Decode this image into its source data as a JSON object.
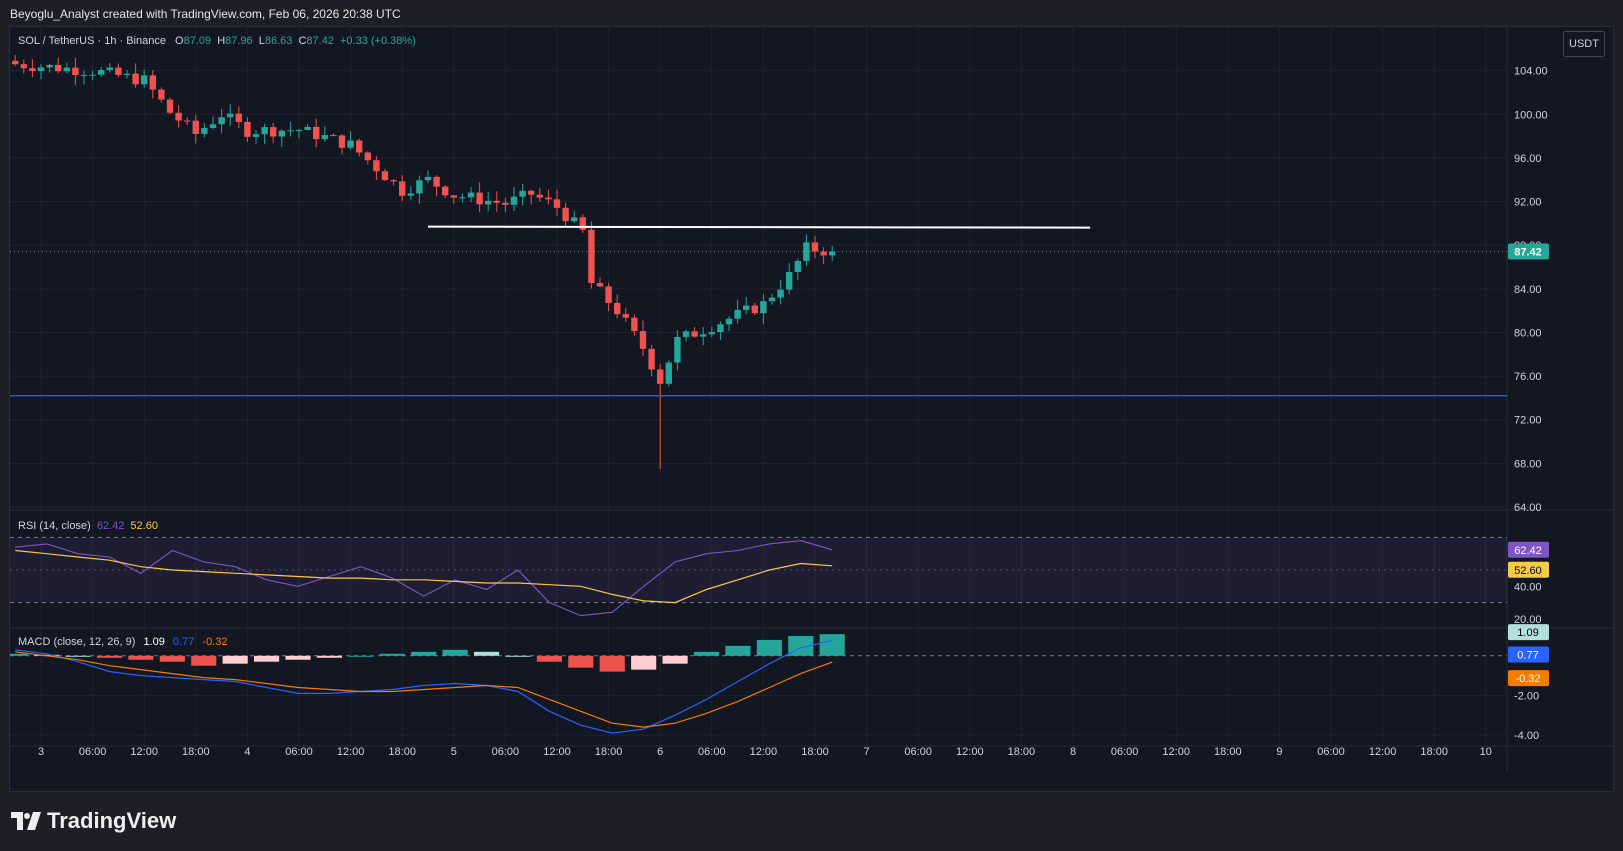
{
  "header": {
    "attribution": "Beyoglu_Analyst created with TradingView.com, Feb 06, 2026 20:38 UTC"
  },
  "brand": {
    "name": "TradingView",
    "logo_icon": "tradingview-logo-icon"
  },
  "symbol": {
    "name": "SOL / TetherUS · 1h · Binance",
    "open_label": "O",
    "open": "87.09",
    "high_label": "H",
    "high": "87.96",
    "low_label": "L",
    "low": "86.63",
    "close_label": "C",
    "close": "87.42",
    "change": "+0.33 (+0.38%)"
  },
  "currency_button": "USDT",
  "colors": {
    "up": "#26a69a",
    "down": "#ef5350",
    "rsi": "#7e57c2",
    "rsi_ma": "#f7c948",
    "macd": "#2962ff",
    "signal": "#f57c00",
    "support": "#2962ff",
    "resistance": "#ffffff"
  },
  "rsi_legend": {
    "name": "RSI (14, close)",
    "value": "62.42",
    "ma": "52.60"
  },
  "macd_legend": {
    "name": "MACD (close, 12, 26, 9)",
    "hist": "1.09",
    "macd": "0.77",
    "signal": "-0.32"
  },
  "chart_data": [
    {
      "type": "candlestick",
      "title": "SOL / TetherUS · 1h · Binance",
      "ylim": [
        64,
        108
      ],
      "y_ticks": [
        "104.00",
        "100.00",
        "96.00",
        "92.00",
        "88.00",
        "84.00",
        "80.00",
        "76.00",
        "72.00",
        "68.00",
        "64.00"
      ],
      "x_ticks": [
        "3",
        "06:00",
        "12:00",
        "18:00",
        "4",
        "06:00",
        "12:00",
        "18:00",
        "5",
        "06:00",
        "12:00",
        "18:00",
        "6",
        "06:00",
        "12:00",
        "18:00",
        "7",
        "06:00",
        "12:00",
        "18:00",
        "8",
        "06:00",
        "12:00",
        "18:00",
        "9",
        "06:00",
        "12:00",
        "18:00",
        "10"
      ],
      "last_price": "87.42",
      "horizontal_lines": [
        {
          "name": "resistance",
          "value": 89.7
        },
        {
          "name": "support",
          "value": 74.2
        }
      ],
      "close_path": [
        {
          "x": "Feb 2 21:00",
          "y": 104.6
        },
        {
          "x": "Feb 3 06:00",
          "y": 104.0
        },
        {
          "x": "Feb 3 12:00",
          "y": 103.1
        },
        {
          "x": "Feb 3 15:00",
          "y": 100.2
        },
        {
          "x": "Feb 3 18:00",
          "y": 98.2
        },
        {
          "x": "Feb 3 21:00",
          "y": 100.0
        },
        {
          "x": "Feb 4 00:00",
          "y": 98.5
        },
        {
          "x": "Feb 4 06:00",
          "y": 98.6
        },
        {
          "x": "Feb 4 12:00",
          "y": 97.2
        },
        {
          "x": "Feb 4 18:00",
          "y": 93.0
        },
        {
          "x": "Feb 4 21:00",
          "y": 94.0
        },
        {
          "x": "Feb 5 00:00",
          "y": 92.6
        },
        {
          "x": "Feb 5 06:00",
          "y": 91.8
        },
        {
          "x": "Feb 5 09:00",
          "y": 92.7
        },
        {
          "x": "Feb 5 12:00",
          "y": 91.5
        },
        {
          "x": "Feb 5 15:00",
          "y": 89.2
        },
        {
          "x": "Feb 5 16:00",
          "y": 84.5
        },
        {
          "x": "Feb 5 19:00",
          "y": 82.0
        },
        {
          "x": "Feb 5 22:00",
          "y": 78.6
        },
        {
          "x": "Feb 6 00:00",
          "y": 75.6
        },
        {
          "x": "Feb 6 02:00",
          "y": 79.3
        },
        {
          "x": "Feb 6 06:00",
          "y": 80.6
        },
        {
          "x": "Feb 6 09:00",
          "y": 81.6
        },
        {
          "x": "Feb 6 12:00",
          "y": 82.6
        },
        {
          "x": "Feb 6 15:00",
          "y": 85.2
        },
        {
          "x": "Feb 6 17:00",
          "y": 87.7
        },
        {
          "x": "Feb 6 20:00",
          "y": 87.42
        }
      ],
      "low_wick": {
        "x": "Feb 6 00:00",
        "low": 67.5
      }
    },
    {
      "type": "line",
      "title": "RSI (14, close)",
      "ylim": [
        15,
        85
      ],
      "y_ticks": [
        "40.00",
        "20.00"
      ],
      "bands": [
        70,
        30
      ],
      "series": [
        {
          "name": "RSI",
          "values": [
            64,
            66,
            60,
            58,
            48,
            62,
            55,
            52,
            44,
            40,
            46,
            52,
            45,
            34,
            44,
            38,
            50,
            30,
            22,
            24,
            40,
            55,
            60,
            62,
            66,
            68,
            62.42
          ]
        },
        {
          "name": "MA",
          "values": [
            62,
            60,
            58,
            56,
            52,
            50,
            49,
            48,
            47,
            46,
            45,
            45,
            44,
            44,
            43,
            42,
            42,
            41,
            40,
            35,
            31,
            30,
            38,
            44,
            50,
            54,
            52.6
          ]
        }
      ]
    },
    {
      "type": "bar",
      "title": "MACD (close, 12, 26, 9)",
      "ylim": [
        -4.4,
        1.3
      ],
      "y_ticks": [
        "-2.00",
        "-4.00"
      ],
      "series": [
        {
          "name": "Histogram",
          "values": [
            0.1,
            0.05,
            0,
            -0.1,
            -0.2,
            -0.3,
            -0.5,
            -0.4,
            -0.3,
            -0.2,
            -0.1,
            0,
            0.1,
            0.2,
            0.3,
            0.2,
            0,
            -0.3,
            -0.6,
            -0.8,
            -0.7,
            -0.4,
            0.2,
            0.5,
            0.8,
            1.0,
            1.09
          ]
        },
        {
          "name": "MACD",
          "values": [
            0.3,
            0.1,
            -0.3,
            -0.8,
            -1.0,
            -1.1,
            -1.2,
            -1.3,
            -1.6,
            -1.9,
            -1.9,
            -1.8,
            -1.7,
            -1.5,
            -1.4,
            -1.5,
            -1.8,
            -2.8,
            -3.5,
            -3.9,
            -3.7,
            -3.0,
            -2.2,
            -1.3,
            -0.4,
            0.4,
            0.77
          ]
        },
        {
          "name": "Signal",
          "values": [
            0.2,
            0,
            -0.2,
            -0.5,
            -0.7,
            -0.9,
            -1.1,
            -1.2,
            -1.4,
            -1.6,
            -1.7,
            -1.8,
            -1.8,
            -1.7,
            -1.6,
            -1.5,
            -1.6,
            -2.2,
            -2.8,
            -3.4,
            -3.6,
            -3.4,
            -2.9,
            -2.3,
            -1.6,
            -0.9,
            -0.32
          ]
        }
      ]
    }
  ]
}
